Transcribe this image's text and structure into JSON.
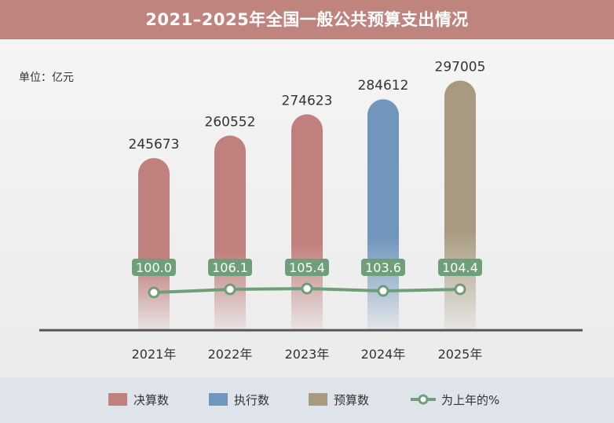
{
  "title": "2021–2025年全国一般公共预算支出情况",
  "unit_label": "单位：亿元",
  "chart_data": {
    "type": "bar",
    "categories": [
      "2021年",
      "2022年",
      "2023年",
      "2024年",
      "2025年"
    ],
    "values": [
      245673,
      260552,
      274623,
      284612,
      297005
    ],
    "value_labels": [
      "245673",
      "260552",
      "274623",
      "284612",
      "297005"
    ],
    "bar_types": [
      "决算数",
      "决算数",
      "决算数",
      "执行数",
      "预算数"
    ],
    "line_series": {
      "name": "为上年的%",
      "values": [
        100.0,
        106.1,
        105.4,
        103.6,
        104.4
      ],
      "labels": [
        "100.0",
        "106.1",
        "105.4",
        "103.6",
        "104.4"
      ]
    },
    "legend": [
      {
        "label": "决算数",
        "color": "#c0817e",
        "kind": "box"
      },
      {
        "label": "执行数",
        "color": "#7196bb",
        "kind": "box"
      },
      {
        "label": "预算数",
        "color": "#a89a80",
        "kind": "box"
      },
      {
        "label": "为上年的%",
        "color": "#6f9f79",
        "kind": "line"
      }
    ],
    "colors": {
      "决算数": "#c0817e",
      "执行数": "#7196bb",
      "预算数": "#a89a80",
      "line": "#6f9f79"
    },
    "legend_position": "bottom"
  }
}
